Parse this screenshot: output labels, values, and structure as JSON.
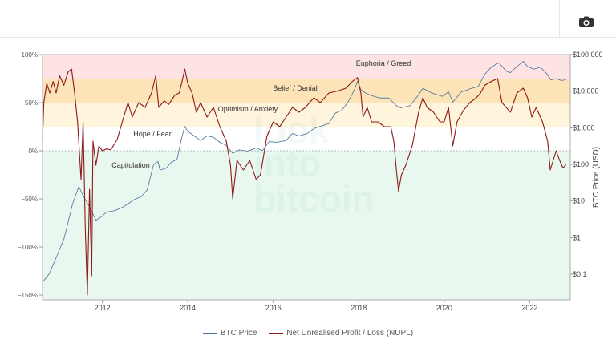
{
  "toolbar": {
    "icon": "camera-icon"
  },
  "chart_data": {
    "type": "line",
    "x_ticks": [
      "2012",
      "2014",
      "2016",
      "2018",
      "2020",
      "2022"
    ],
    "x_tick_years": [
      2012,
      2014,
      2016,
      2018,
      2020,
      2022
    ],
    "xlim": [
      2010.6,
      2022.95
    ],
    "left_axis": {
      "ticks": [
        "100%",
        "50%",
        "0%",
        "−50%",
        "−100%",
        "−150%"
      ],
      "tick_values": [
        1,
        0.5,
        0,
        -0.5,
        -1,
        -1.5
      ],
      "ylim": [
        -1.55,
        1.0
      ]
    },
    "right_axis": {
      "title": "BTC Price (USD)",
      "ticks": [
        "$100,000",
        "$10,000",
        "$1,000",
        "$100",
        "$10",
        "$1",
        "$0.1"
      ],
      "tick_values": [
        100000,
        10000,
        1000,
        100,
        10,
        1,
        0.1
      ],
      "scale": "log",
      "ylim": [
        0.02,
        100000
      ]
    },
    "zones": [
      {
        "label": "Euphoria / Greed",
        "from": 0.75,
        "to": 1.0,
        "color": "#fde3e4"
      },
      {
        "label": "Belief / Denial",
        "from": 0.5,
        "to": 0.75,
        "color": "#fde3b8"
      },
      {
        "label": "Optimism / Anxiety",
        "from": 0.25,
        "to": 0.5,
        "color": "#fff4dc"
      },
      {
        "label": "Hope / Fear",
        "from": 0.0,
        "to": 0.25,
        "color": "#ffffff"
      },
      {
        "label": "Capitulation",
        "from": -1.55,
        "to": 0.0,
        "color": "#e9f8ee"
      }
    ],
    "series": [
      {
        "name": "BTC Price",
        "color": "#4a6f9c",
        "axis": "right",
        "points": [
          [
            2010.6,
            0.06
          ],
          [
            2010.75,
            0.1
          ],
          [
            2010.9,
            0.25
          ],
          [
            2011.1,
            0.9
          ],
          [
            2011.3,
            8
          ],
          [
            2011.45,
            25
          ],
          [
            2011.55,
            14
          ],
          [
            2011.7,
            7
          ],
          [
            2011.85,
            3
          ],
          [
            2011.95,
            3.5
          ],
          [
            2012.1,
            5
          ],
          [
            2012.3,
            5.5
          ],
          [
            2012.5,
            7
          ],
          [
            2012.75,
            11
          ],
          [
            2012.9,
            13
          ],
          [
            2013.05,
            20
          ],
          [
            2013.2,
            100
          ],
          [
            2013.3,
            120
          ],
          [
            2013.35,
            70
          ],
          [
            2013.5,
            80
          ],
          [
            2013.6,
            110
          ],
          [
            2013.75,
            140
          ],
          [
            2013.85,
            500
          ],
          [
            2013.93,
            1100
          ],
          [
            2014.0,
            800
          ],
          [
            2014.15,
            600
          ],
          [
            2014.3,
            450
          ],
          [
            2014.45,
            600
          ],
          [
            2014.6,
            550
          ],
          [
            2014.75,
            400
          ],
          [
            2014.9,
            330
          ],
          [
            2015.05,
            200
          ],
          [
            2015.2,
            250
          ],
          [
            2015.4,
            230
          ],
          [
            2015.6,
            280
          ],
          [
            2015.75,
            240
          ],
          [
            2015.9,
            420
          ],
          [
            2016.1,
            400
          ],
          [
            2016.3,
            450
          ],
          [
            2016.45,
            700
          ],
          [
            2016.6,
            600
          ],
          [
            2016.8,
            700
          ],
          [
            2016.95,
            950
          ],
          [
            2017.1,
            1100
          ],
          [
            2017.3,
            1300
          ],
          [
            2017.45,
            2500
          ],
          [
            2017.6,
            3000
          ],
          [
            2017.75,
            5000
          ],
          [
            2017.9,
            11000
          ],
          [
            2017.97,
            18500
          ],
          [
            2018.05,
            11000
          ],
          [
            2018.15,
            9000
          ],
          [
            2018.3,
            7500
          ],
          [
            2018.5,
            6500
          ],
          [
            2018.7,
            6500
          ],
          [
            2018.88,
            4000
          ],
          [
            2018.98,
            3500
          ],
          [
            2019.2,
            4000
          ],
          [
            2019.4,
            8000
          ],
          [
            2019.5,
            12000
          ],
          [
            2019.7,
            9000
          ],
          [
            2019.95,
            7200
          ],
          [
            2020.1,
            9500
          ],
          [
            2020.2,
            5000
          ],
          [
            2020.4,
            9500
          ],
          [
            2020.6,
            11500
          ],
          [
            2020.8,
            13500
          ],
          [
            2020.95,
            29000
          ],
          [
            2021.1,
            45000
          ],
          [
            2021.28,
            60000
          ],
          [
            2021.45,
            35000
          ],
          [
            2021.55,
            32000
          ],
          [
            2021.7,
            47000
          ],
          [
            2021.85,
            65000
          ],
          [
            2021.95,
            47000
          ],
          [
            2022.1,
            40000
          ],
          [
            2022.25,
            45000
          ],
          [
            2022.4,
            30000
          ],
          [
            2022.5,
            20000
          ],
          [
            2022.6,
            22000
          ],
          [
            2022.75,
            19500
          ],
          [
            2022.85,
            20500
          ]
        ]
      },
      {
        "name": "Net Unrealised Profit / Loss (NUPL)",
        "color": "#8c1a1a",
        "axis": "left",
        "points": [
          [
            2010.6,
            0.1
          ],
          [
            2010.63,
            0.5
          ],
          [
            2010.7,
            0.7
          ],
          [
            2010.77,
            0.6
          ],
          [
            2010.85,
            0.72
          ],
          [
            2010.92,
            0.6
          ],
          [
            2011.0,
            0.78
          ],
          [
            2011.1,
            0.68
          ],
          [
            2011.2,
            0.82
          ],
          [
            2011.28,
            0.85
          ],
          [
            2011.35,
            0.6
          ],
          [
            2011.42,
            0.3
          ],
          [
            2011.5,
            -0.3
          ],
          [
            2011.55,
            0.3
          ],
          [
            2011.6,
            -0.8
          ],
          [
            2011.65,
            -1.5
          ],
          [
            2011.7,
            -0.4
          ],
          [
            2011.75,
            -1.3
          ],
          [
            2011.78,
            0.1
          ],
          [
            2011.85,
            -0.15
          ],
          [
            2011.92,
            0.05
          ],
          [
            2012.0,
            0.0
          ],
          [
            2012.1,
            0.02
          ],
          [
            2012.2,
            0.01
          ],
          [
            2012.35,
            0.12
          ],
          [
            2012.5,
            0.35
          ],
          [
            2012.6,
            0.5
          ],
          [
            2012.7,
            0.35
          ],
          [
            2012.85,
            0.5
          ],
          [
            2013.0,
            0.45
          ],
          [
            2013.15,
            0.6
          ],
          [
            2013.25,
            0.78
          ],
          [
            2013.32,
            0.45
          ],
          [
            2013.45,
            0.52
          ],
          [
            2013.55,
            0.48
          ],
          [
            2013.7,
            0.58
          ],
          [
            2013.8,
            0.6
          ],
          [
            2013.88,
            0.75
          ],
          [
            2013.93,
            0.85
          ],
          [
            2014.0,
            0.7
          ],
          [
            2014.1,
            0.6
          ],
          [
            2014.2,
            0.4
          ],
          [
            2014.3,
            0.5
          ],
          [
            2014.45,
            0.35
          ],
          [
            2014.6,
            0.45
          ],
          [
            2014.75,
            0.25
          ],
          [
            2014.9,
            0.1
          ],
          [
            2015.0,
            -0.15
          ],
          [
            2015.05,
            -0.5
          ],
          [
            2015.15,
            -0.1
          ],
          [
            2015.3,
            -0.2
          ],
          [
            2015.45,
            -0.1
          ],
          [
            2015.6,
            -0.3
          ],
          [
            2015.7,
            -0.25
          ],
          [
            2015.85,
            0.15
          ],
          [
            2016.0,
            0.3
          ],
          [
            2016.15,
            0.25
          ],
          [
            2016.3,
            0.35
          ],
          [
            2016.45,
            0.45
          ],
          [
            2016.6,
            0.4
          ],
          [
            2016.75,
            0.45
          ],
          [
            2016.95,
            0.55
          ],
          [
            2017.1,
            0.5
          ],
          [
            2017.3,
            0.6
          ],
          [
            2017.5,
            0.62
          ],
          [
            2017.7,
            0.65
          ],
          [
            2017.85,
            0.72
          ],
          [
            2017.97,
            0.76
          ],
          [
            2018.05,
            0.6
          ],
          [
            2018.1,
            0.35
          ],
          [
            2018.2,
            0.45
          ],
          [
            2018.3,
            0.3
          ],
          [
            2018.45,
            0.3
          ],
          [
            2018.6,
            0.25
          ],
          [
            2018.75,
            0.25
          ],
          [
            2018.82,
            0.1
          ],
          [
            2018.88,
            -0.2
          ],
          [
            2018.93,
            -0.42
          ],
          [
            2019.0,
            -0.25
          ],
          [
            2019.1,
            -0.15
          ],
          [
            2019.25,
            0.05
          ],
          [
            2019.4,
            0.4
          ],
          [
            2019.5,
            0.55
          ],
          [
            2019.6,
            0.45
          ],
          [
            2019.75,
            0.4
          ],
          [
            2019.9,
            0.3
          ],
          [
            2020.0,
            0.3
          ],
          [
            2020.1,
            0.45
          ],
          [
            2020.2,
            0.05
          ],
          [
            2020.3,
            0.3
          ],
          [
            2020.45,
            0.42
          ],
          [
            2020.6,
            0.5
          ],
          [
            2020.75,
            0.55
          ],
          [
            2020.85,
            0.6
          ],
          [
            2020.95,
            0.68
          ],
          [
            2021.1,
            0.72
          ],
          [
            2021.25,
            0.75
          ],
          [
            2021.35,
            0.5
          ],
          [
            2021.45,
            0.45
          ],
          [
            2021.55,
            0.4
          ],
          [
            2021.7,
            0.6
          ],
          [
            2021.85,
            0.65
          ],
          [
            2021.95,
            0.55
          ],
          [
            2022.05,
            0.35
          ],
          [
            2022.15,
            0.45
          ],
          [
            2022.3,
            0.3
          ],
          [
            2022.42,
            0.1
          ],
          [
            2022.48,
            -0.2
          ],
          [
            2022.55,
            -0.1
          ],
          [
            2022.62,
            0.0
          ],
          [
            2022.7,
            -0.1
          ],
          [
            2022.78,
            -0.18
          ],
          [
            2022.85,
            -0.14
          ]
        ]
      }
    ],
    "legend": [
      "BTC Price",
      "Net Unrealised Profit / Loss (NUPL)"
    ],
    "legend_position": "bottom",
    "grid": false
  }
}
